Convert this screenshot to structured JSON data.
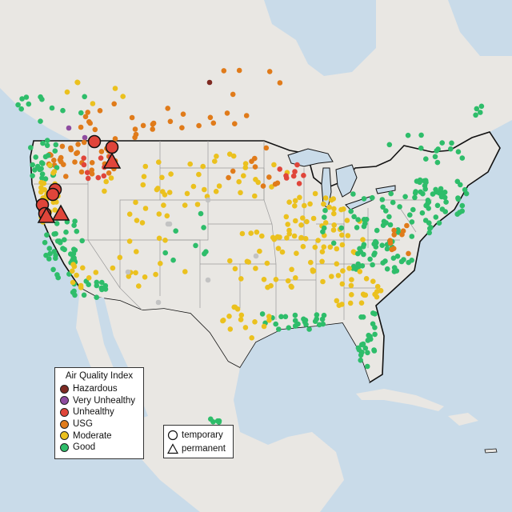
{
  "legend": {
    "title": "Air Quality Index",
    "categories": [
      {
        "label": "Hazardous",
        "color": "#7e2a22"
      },
      {
        "label": "Very Unhealthy",
        "color": "#8e4ca0"
      },
      {
        "label": "Unhealthy",
        "color": "#e0453a"
      },
      {
        "label": "USG",
        "color": "#e07b1a"
      },
      {
        "label": "Moderate",
        "color": "#ebc11e"
      },
      {
        "label": "Good",
        "color": "#2ebd6a"
      }
    ]
  },
  "shape_legend": {
    "temporary": "temporary",
    "permanent": "permanent"
  },
  "colors": {
    "water": "#c9dbe9",
    "land": "#e9e7e3",
    "no_data": "#c3c3c3"
  }
}
